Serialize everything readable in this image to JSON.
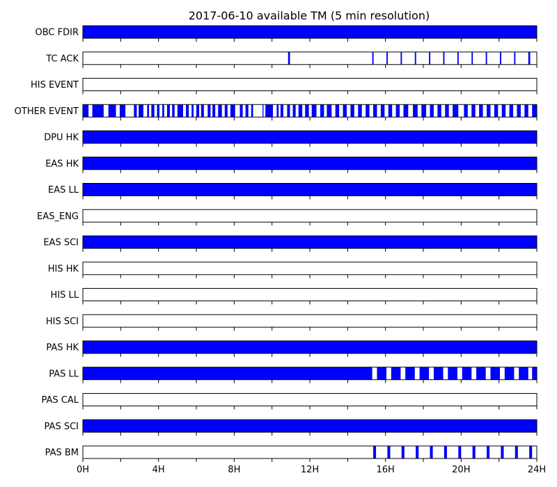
{
  "chart_data": {
    "type": "timeline",
    "title": "2017-06-10 available TM (5 min resolution)",
    "x_range_hours": [
      0,
      24
    ],
    "x_ticks": [
      {
        "hour": 0,
        "label": "0H"
      },
      {
        "hour": 4,
        "label": "4H"
      },
      {
        "hour": 8,
        "label": "8H"
      },
      {
        "hour": 12,
        "label": "12H"
      },
      {
        "hour": 16,
        "label": "16H"
      },
      {
        "hour": 20,
        "label": "20H"
      },
      {
        "hour": 24,
        "label": "24H"
      }
    ],
    "fill_color": "#0000ff",
    "series": [
      {
        "name": "OBC FDIR",
        "intervals": [
          [
            0,
            24
          ]
        ]
      },
      {
        "name": "TC ACK",
        "intervals": [
          [
            10.85,
            10.95
          ],
          [
            15.3,
            15.37
          ],
          [
            16.05,
            16.12
          ],
          [
            16.8,
            16.87
          ],
          [
            17.55,
            17.62
          ],
          [
            18.3,
            18.37
          ],
          [
            19.05,
            19.12
          ],
          [
            19.8,
            19.87
          ],
          [
            20.55,
            20.62
          ],
          [
            21.3,
            21.37
          ],
          [
            22.05,
            22.12
          ],
          [
            22.8,
            22.87
          ],
          [
            23.55,
            23.65
          ]
        ]
      },
      {
        "name": "HIS EVENT",
        "intervals": []
      },
      {
        "name": "OTHER EVENT",
        "intervals": [
          [
            0,
            0.3
          ],
          [
            0.5,
            1.1
          ],
          [
            1.35,
            1.75
          ],
          [
            1.95,
            2.25
          ],
          [
            2.7,
            2.85
          ],
          [
            2.95,
            3.2
          ],
          [
            3.4,
            3.5
          ],
          [
            3.62,
            3.78
          ],
          [
            3.92,
            4.05
          ],
          [
            4.2,
            4.3
          ],
          [
            4.45,
            4.6
          ],
          [
            4.72,
            4.85
          ],
          [
            5.0,
            5.3
          ],
          [
            5.45,
            5.6
          ],
          [
            5.75,
            5.85
          ],
          [
            6.0,
            6.15
          ],
          [
            6.25,
            6.4
          ],
          [
            6.6,
            6.75
          ],
          [
            6.85,
            7.0
          ],
          [
            7.15,
            7.35
          ],
          [
            7.5,
            7.65
          ],
          [
            7.8,
            8.05
          ],
          [
            8.3,
            8.45
          ],
          [
            8.6,
            8.75
          ],
          [
            8.9,
            9.0
          ],
          [
            9.5,
            9.55
          ],
          [
            9.65,
            10.05
          ],
          [
            10.25,
            10.35
          ],
          [
            10.45,
            10.6
          ],
          [
            10.8,
            10.95
          ],
          [
            11.1,
            11.25
          ],
          [
            11.4,
            11.6
          ],
          [
            11.75,
            11.95
          ],
          [
            12.1,
            12.35
          ],
          [
            12.55,
            12.75
          ],
          [
            12.9,
            13.15
          ],
          [
            13.35,
            13.55
          ],
          [
            13.75,
            13.95
          ],
          [
            14.15,
            14.35
          ],
          [
            14.55,
            14.75
          ],
          [
            14.95,
            15.15
          ],
          [
            15.35,
            15.55
          ],
          [
            15.75,
            15.95
          ],
          [
            16.15,
            16.35
          ],
          [
            16.55,
            16.75
          ],
          [
            16.95,
            17.2
          ],
          [
            17.45,
            17.7
          ],
          [
            17.9,
            18.15
          ],
          [
            18.35,
            18.55
          ],
          [
            18.75,
            18.95
          ],
          [
            19.15,
            19.35
          ],
          [
            19.55,
            19.85
          ],
          [
            20.15,
            20.35
          ],
          [
            20.55,
            20.75
          ],
          [
            20.95,
            21.15
          ],
          [
            21.35,
            21.55
          ],
          [
            21.75,
            21.95
          ],
          [
            22.15,
            22.35
          ],
          [
            22.55,
            22.75
          ],
          [
            22.95,
            23.15
          ],
          [
            23.35,
            23.55
          ],
          [
            23.75,
            24
          ]
        ]
      },
      {
        "name": "DPU HK",
        "intervals": [
          [
            0,
            24
          ]
        ]
      },
      {
        "name": "EAS HK",
        "intervals": [
          [
            0,
            24
          ]
        ]
      },
      {
        "name": "EAS LL",
        "intervals": [
          [
            0,
            24
          ]
        ]
      },
      {
        "name": "EAS_ENG",
        "intervals": []
      },
      {
        "name": "EAS SCI",
        "intervals": [
          [
            0,
            24
          ]
        ]
      },
      {
        "name": "HIS HK",
        "intervals": []
      },
      {
        "name": "HIS LL",
        "intervals": []
      },
      {
        "name": "HIS SCI",
        "intervals": []
      },
      {
        "name": "PAS HK",
        "intervals": [
          [
            0,
            24
          ]
        ]
      },
      {
        "name": "PAS LL",
        "intervals": [
          [
            0,
            15.3
          ],
          [
            15.55,
            16.05
          ],
          [
            16.3,
            16.8
          ],
          [
            17.05,
            17.55
          ],
          [
            17.8,
            18.3
          ],
          [
            18.55,
            19.05
          ],
          [
            19.3,
            19.8
          ],
          [
            20.05,
            20.55
          ],
          [
            20.8,
            21.3
          ],
          [
            21.55,
            22.05
          ],
          [
            22.3,
            22.8
          ],
          [
            23.05,
            23.55
          ],
          [
            23.75,
            24
          ]
        ]
      },
      {
        "name": "PAS CAL",
        "intervals": []
      },
      {
        "name": "PAS SCI",
        "intervals": [
          [
            0,
            24
          ]
        ]
      },
      {
        "name": "PAS BM",
        "intervals": [
          [
            15.35,
            15.5
          ],
          [
            16.1,
            16.25
          ],
          [
            16.85,
            17.0
          ],
          [
            17.6,
            17.75
          ],
          [
            18.35,
            18.5
          ],
          [
            19.1,
            19.25
          ],
          [
            19.85,
            20.0
          ],
          [
            20.6,
            20.75
          ],
          [
            21.35,
            21.5
          ],
          [
            22.1,
            22.25
          ],
          [
            22.85,
            23.0
          ],
          [
            23.6,
            23.75
          ]
        ]
      }
    ]
  }
}
